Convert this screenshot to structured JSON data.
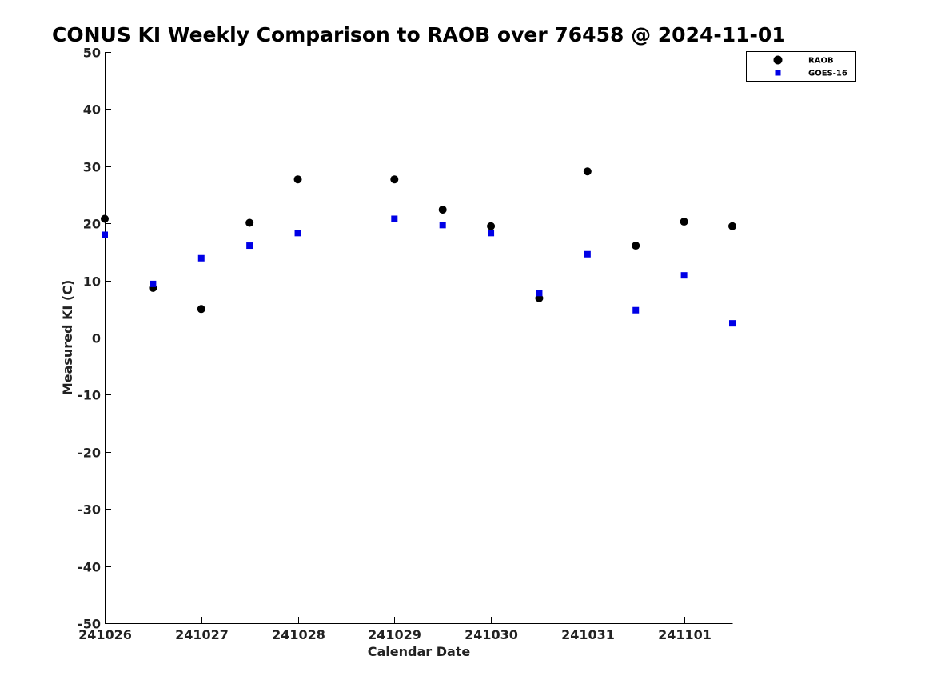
{
  "chart_data": {
    "type": "scatter",
    "title": "CONUS KI Weekly Comparison to RAOB over 76458 @ 2024-11-01",
    "xlabel": "Calendar Date",
    "ylabel": "Measured KI (C)",
    "xlim": [
      "2024-10-26T00:00",
      "2024-11-01T12:00"
    ],
    "ylim": [
      -50,
      50
    ],
    "yticks": [
      50,
      40,
      30,
      20,
      10,
      0,
      -10,
      -20,
      -30,
      -40,
      -50
    ],
    "xticks": [
      {
        "x": "2024-10-26",
        "label": "241026"
      },
      {
        "x": "2024-10-27",
        "label": "241027"
      },
      {
        "x": "2024-10-28",
        "label": "241028"
      },
      {
        "x": "2024-10-29",
        "label": "241029"
      },
      {
        "x": "2024-10-30",
        "label": "241030"
      },
      {
        "x": "2024-10-31",
        "label": "241031"
      },
      {
        "x": "2024-11-01",
        "label": "241101"
      }
    ],
    "grid": false,
    "legend_position": "top-right",
    "series": [
      {
        "name": "RAOB",
        "marker": "circle",
        "color": "#000000",
        "points": [
          {
            "x": "2024-10-26T00:00",
            "y": 20.8
          },
          {
            "x": "2024-10-26T12:00",
            "y": 8.7
          },
          {
            "x": "2024-10-27T00:00",
            "y": 5.0
          },
          {
            "x": "2024-10-27T12:00",
            "y": 20.1
          },
          {
            "x": "2024-10-28T00:00",
            "y": 27.7
          },
          {
            "x": "2024-10-29T00:00",
            "y": 27.7
          },
          {
            "x": "2024-10-29T12:00",
            "y": 22.4
          },
          {
            "x": "2024-10-30T00:00",
            "y": 19.5
          },
          {
            "x": "2024-10-30T12:00",
            "y": 6.9
          },
          {
            "x": "2024-10-31T00:00",
            "y": 29.1
          },
          {
            "x": "2024-10-31T12:00",
            "y": 16.1
          },
          {
            "x": "2024-11-01T00:00",
            "y": 20.3
          },
          {
            "x": "2024-11-01T12:00",
            "y": 19.5
          }
        ]
      },
      {
        "name": "GOES-16",
        "marker": "square",
        "color": "#0000e6",
        "points": [
          {
            "x": "2024-10-26T00:00",
            "y": 18.0
          },
          {
            "x": "2024-10-26T12:00",
            "y": 9.4
          },
          {
            "x": "2024-10-27T00:00",
            "y": 13.9
          },
          {
            "x": "2024-10-27T12:00",
            "y": 16.1
          },
          {
            "x": "2024-10-28T00:00",
            "y": 18.3
          },
          {
            "x": "2024-10-29T00:00",
            "y": 20.8
          },
          {
            "x": "2024-10-29T12:00",
            "y": 19.7
          },
          {
            "x": "2024-10-30T00:00",
            "y": 18.3
          },
          {
            "x": "2024-10-30T12:00",
            "y": 7.8
          },
          {
            "x": "2024-10-31T00:00",
            "y": 14.6
          },
          {
            "x": "2024-10-31T12:00",
            "y": 4.8
          },
          {
            "x": "2024-11-01T00:00",
            "y": 10.9
          },
          {
            "x": "2024-11-01T12:00",
            "y": 2.5
          }
        ]
      }
    ]
  }
}
